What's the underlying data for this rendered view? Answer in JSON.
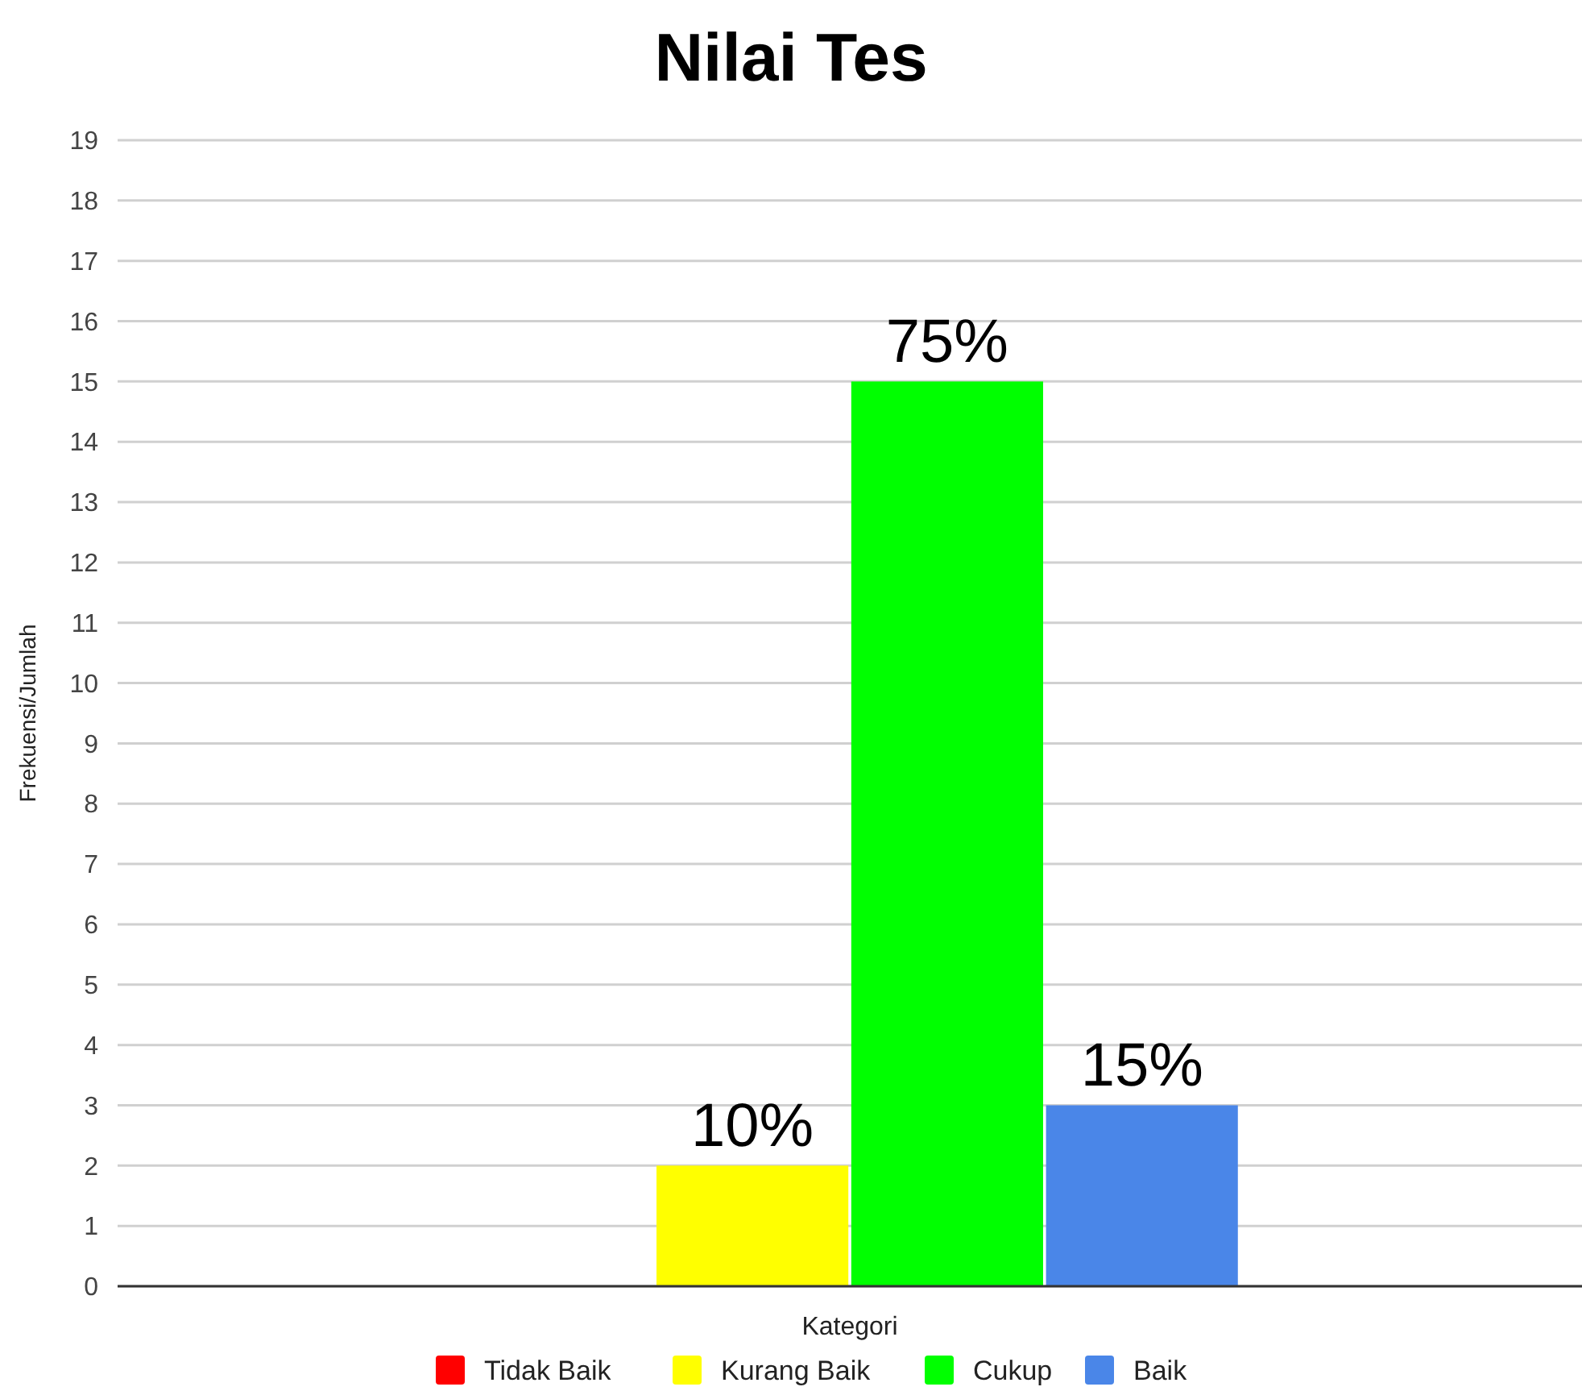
{
  "chart_data": {
    "type": "bar",
    "title": "Nilai Tes",
    "xlabel": "Kategori",
    "ylabel": "Frekuensi/Jumlah",
    "categories": [
      null
    ],
    "series": [
      {
        "name": "Tidak Baik",
        "color": "#ff0000",
        "values": [
          0
        ]
      },
      {
        "name": "Kurang Baik",
        "color": "#ffff00",
        "values": [
          2
        ]
      },
      {
        "name": "Cukup",
        "color": "#00ff00",
        "values": [
          15
        ]
      },
      {
        "name": "Baik",
        "color": "#4a86e8",
        "values": [
          3
        ]
      }
    ],
    "annotations": [
      {
        "text": "10%",
        "y": 2
      },
      {
        "text": "75%",
        "y": 15
      },
      {
        "text": "15%",
        "y": 3
      }
    ],
    "ylim": [
      0,
      19
    ],
    "yticks": [
      0,
      1,
      2,
      3,
      4,
      5,
      6,
      7,
      8,
      9,
      10,
      11,
      12,
      13,
      14,
      15,
      16,
      17,
      18,
      19
    ],
    "grid": "y",
    "legend": "bottom"
  }
}
